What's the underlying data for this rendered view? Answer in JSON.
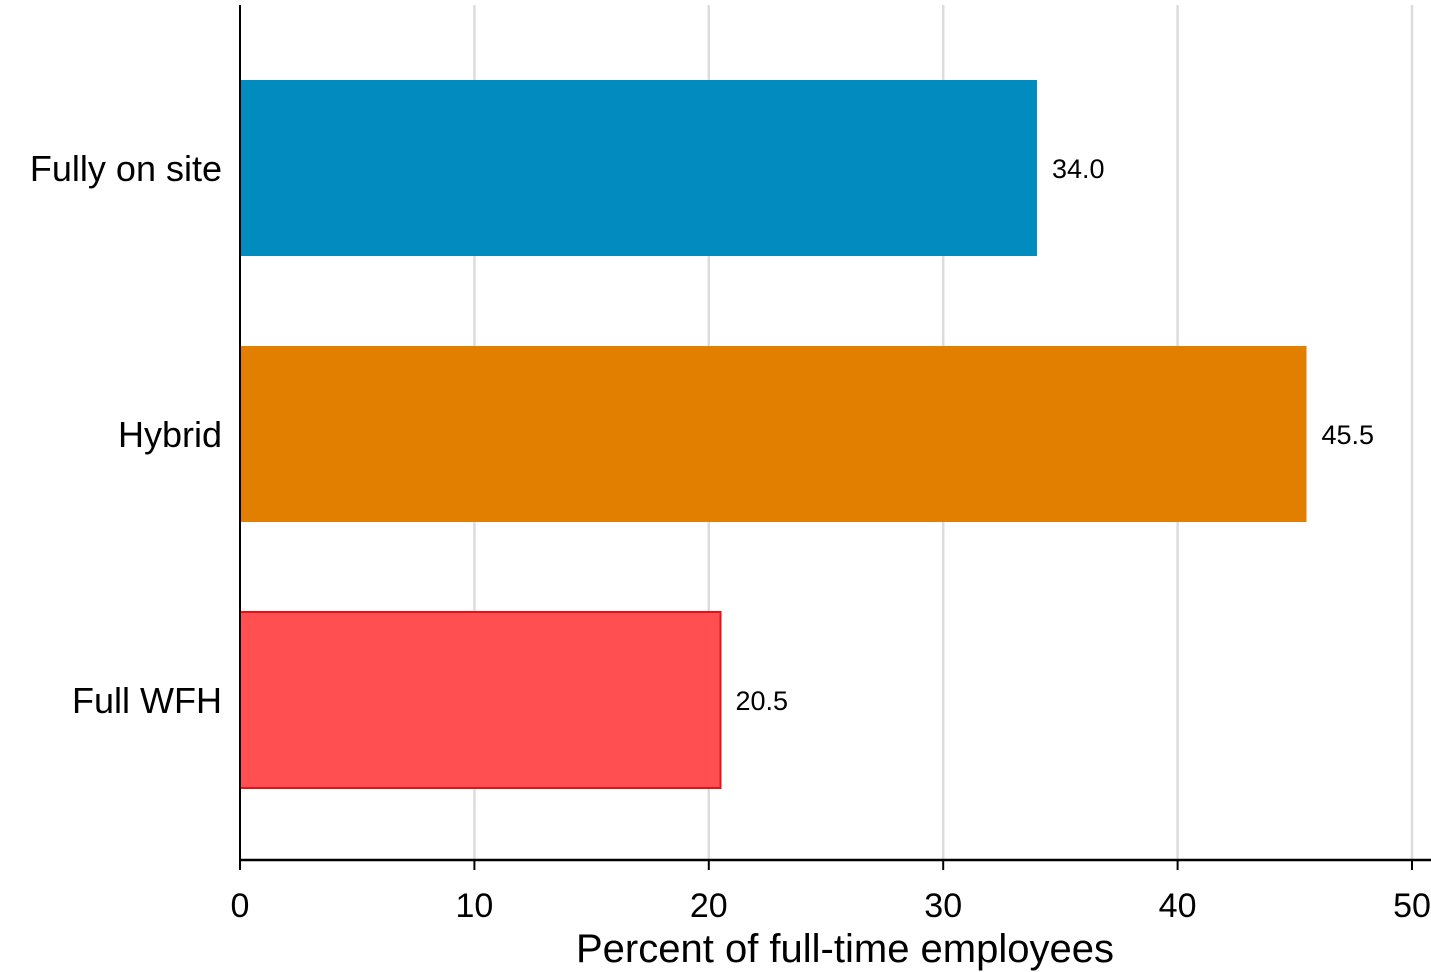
{
  "chart_data": {
    "type": "bar",
    "orientation": "horizontal",
    "categories": [
      "Fully on site",
      "Hybrid",
      "Full WFH"
    ],
    "values": [
      34.0,
      45.5,
      20.5
    ],
    "value_labels": [
      "34.0",
      "45.5",
      "20.5"
    ],
    "colors": [
      "#028bbe",
      "#e27e00",
      "#ff4f51"
    ],
    "title": "",
    "xlabel": "Percent of full-time employees",
    "ylabel": "",
    "xlim": [
      0,
      50
    ],
    "x_ticks": [
      0,
      10,
      20,
      30,
      40,
      50
    ],
    "x_tick_labels": [
      "0",
      "10",
      "20",
      "30",
      "40",
      "50"
    ],
    "grid": "vertical",
    "legend": "none"
  }
}
